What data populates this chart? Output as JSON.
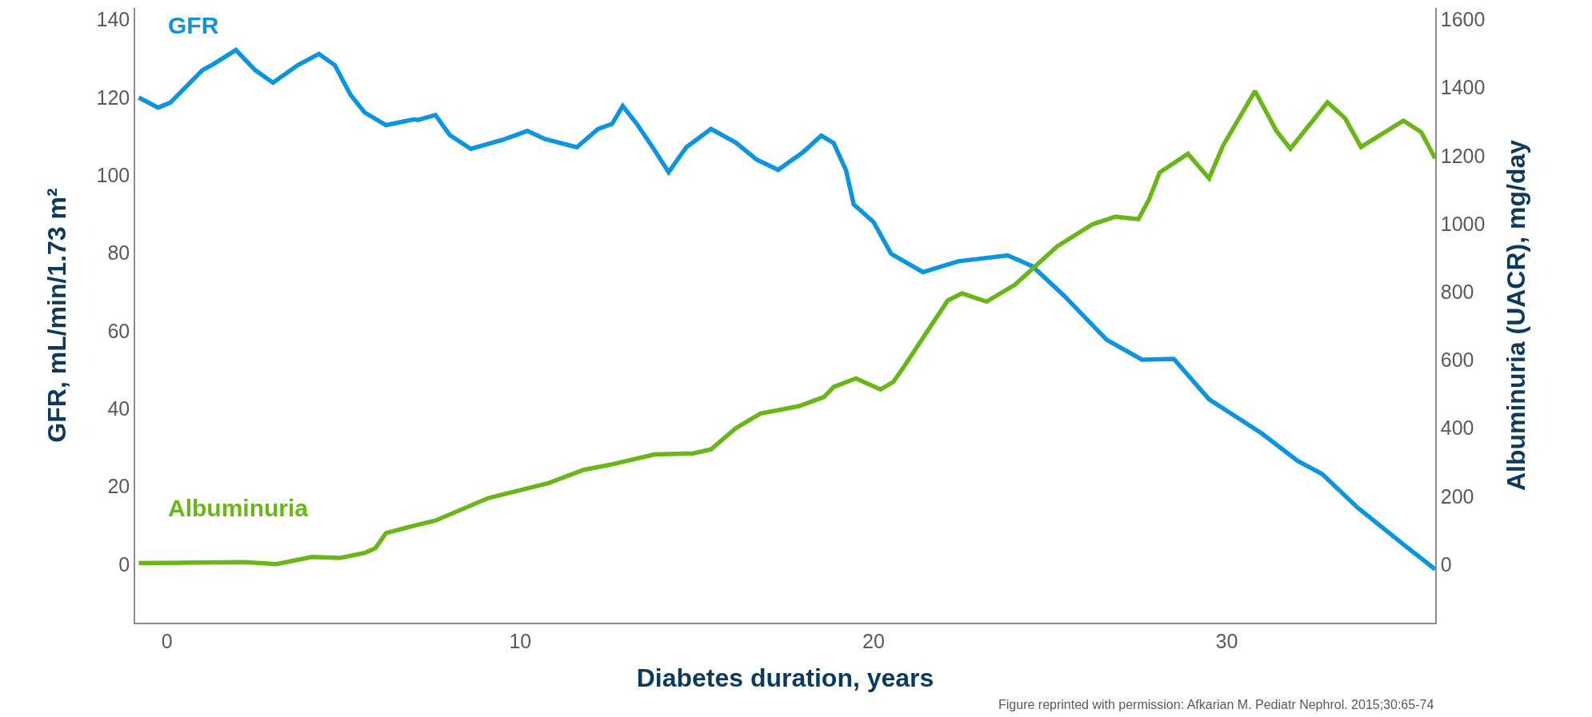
{
  "chart_data": {
    "type": "line",
    "xlabel": "Diabetes duration, years",
    "ylabel": "GFR, mL/min/1.73 m²",
    "y2label": "Albuminuria (UACR), mg/day",
    "xlim": [
      -0.9,
      35.9
    ],
    "xticks": [
      0,
      10,
      20,
      30
    ],
    "ylim": [
      -15,
      143
    ],
    "yticks": [
      0,
      20,
      40,
      60,
      80,
      100,
      120,
      140
    ],
    "y2lim": [
      -171,
      1634
    ],
    "y2ticks": [
      0,
      200,
      400,
      600,
      800,
      1000,
      1200,
      1400,
      1600
    ],
    "marker": "none",
    "line_style": "solid",
    "series": [
      {
        "name": "GFR",
        "color": "#0b95e0",
        "x": [
          -0.8,
          -0.25,
          0.1,
          1.0,
          1.3,
          1.95,
          2.5,
          3.0,
          3.7,
          4.3,
          4.75,
          5.2,
          5.6,
          6.2,
          7.0,
          7.1,
          7.6,
          8.0,
          8.6,
          9.5,
          10.2,
          10.7,
          11.6,
          12.2,
          12.6,
          12.9,
          13.3,
          13.8,
          14.2,
          14.7,
          15.4,
          16.1,
          16.7,
          17.3,
          18.0,
          18.52,
          18.87,
          19.22,
          19.44,
          20.0,
          20.5,
          21.4,
          22.4,
          23.8,
          24.5,
          25.4,
          26.6,
          27.6,
          28.5,
          29.5,
          31.0,
          32.0,
          32.7,
          33.7,
          35.1,
          35.9
        ],
        "values": [
          120,
          117.4,
          118.7,
          127,
          128.5,
          132.2,
          127,
          123.8,
          128.3,
          131.2,
          128.3,
          120.6,
          116.1,
          112.9,
          114.4,
          114.2,
          115.5,
          110.4,
          106.8,
          109.1,
          111.4,
          109.3,
          107.2,
          111.9,
          113.2,
          117.8,
          113.2,
          106.5,
          100.8,
          107.2,
          111.9,
          108.4,
          104,
          101.4,
          105.9,
          110.2,
          108.3,
          101.3,
          92.5,
          88,
          79.8,
          75.1,
          77.9,
          79.4,
          76.6,
          69,
          57.7,
          52.6,
          52.8,
          42.4,
          33.6,
          26.6,
          23.2,
          14.6,
          4.4,
          -1.3
        ]
      },
      {
        "name": "Albuminuria",
        "color": "#6ab619",
        "axis": "y2",
        "x": [
          -0.8,
          2.2,
          3.1,
          4.1,
          4.9,
          5.6,
          5.9,
          6.2,
          7.0,
          7.6,
          9.1,
          10.8,
          11.8,
          12.6,
          13.8,
          14.9,
          15.4,
          16.1,
          16.8,
          17.9,
          18.6,
          18.87,
          19.5,
          20.2,
          20.56,
          20.85,
          22.1,
          22.5,
          23.2,
          24.0,
          25.2,
          26.2,
          26.85,
          27.5,
          27.8,
          28.1,
          28.9,
          29.5,
          29.9,
          30.8,
          31.4,
          31.8,
          32.85,
          33.35,
          33.8,
          35.0,
          35.5,
          35.9
        ],
        "values": [
          4,
          7,
          1,
          22,
          19,
          34,
          48,
          92,
          114,
          129,
          195,
          239,
          278,
          294,
          323,
          326,
          338,
          400,
          443,
          465,
          492,
          521,
          546,
          514,
          536,
          579,
          775,
          796,
          772,
          821,
          934,
          999,
          1021,
          1014,
          1072,
          1151,
          1206,
          1134,
          1231,
          1390,
          1274,
          1221,
          1357,
          1310,
          1226,
          1303,
          1270,
          1192
        ]
      }
    ],
    "annotations": [
      "Figure reprinted with permission: Afkarian M. Pediatr Nephrol. 2015;30:65-74"
    ]
  }
}
